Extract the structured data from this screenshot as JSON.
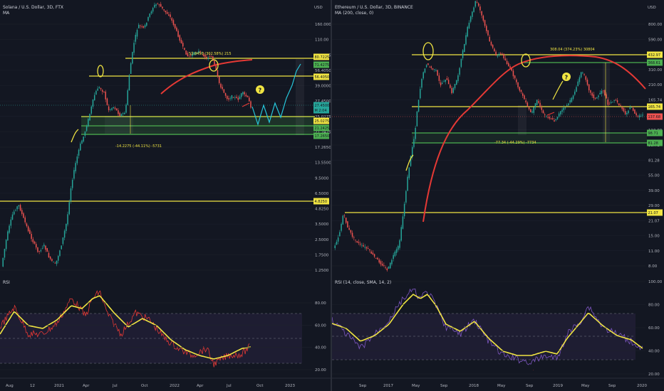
{
  "left": {
    "title": "Solana / U.S. Dollar, 3D, FTX",
    "indicator": "MA",
    "rsi_label": "RSI",
    "currency": "USD",
    "price_ticks": [
      "160.0000",
      "110.00",
      "80.7225",
      "56.4050",
      "39.0000",
      "27.4500",
      "25.0275",
      "21.2425",
      "17.2650",
      "13.5500",
      "9.5000",
      "6.5000",
      "4.8250",
      "3.5000",
      "2.5000",
      "1.7500",
      "1.2500"
    ],
    "rsi_ticks": [
      "80.00",
      "60.00",
      "40.00",
      "20.00"
    ],
    "time_ticks": [
      "Aug",
      "12",
      "2021",
      "Apr",
      "Jul",
      "Oct",
      "2022",
      "Apr",
      "Jul",
      "Oct",
      "2023"
    ],
    "measure_up": "53.8450 (302.58%) 215",
    "measure_down": "-14.2275 (-44.11%) -5731",
    "price_badges": [
      {
        "label": "80.7225",
        "color": "#f0e442"
      },
      {
        "label": "71.4275",
        "color": "#4caf50"
      },
      {
        "label": "56.4050",
        "color": "#f0e442"
      },
      {
        "label": "27.4500",
        "color": "#26a69a"
      },
      {
        "label": "M 2:04",
        "color": "#26a69a"
      },
      {
        "label": "25.0275",
        "color": "#f0e442"
      },
      {
        "label": "21.2425",
        "color": "#4caf50"
      },
      {
        "label": "17.2650",
        "color": "#4caf50"
      },
      {
        "label": "4.8250",
        "color": "#f0e442"
      }
    ]
  },
  "right": {
    "title": "Ethereum / U.S. Dollar, 3D, BINANCE",
    "indicator": "MA (200, close, 0)",
    "rsi_label": "RSI (14, close, SMA, 14, 2)",
    "currency": "USD",
    "price_ticks": [
      "800.00",
      "590.00",
      "432.97",
      "310.00",
      "210.00",
      "165.74",
      "137.68",
      "110.00",
      "98.71",
      "81.28",
      "55.00",
      "39.00",
      "29.00",
      "21.07",
      "15.00",
      "11.00",
      "8.00"
    ],
    "rsi_ticks": [
      "100.00",
      "80.00",
      "60.00",
      "40.00",
      "20.00"
    ],
    "time_ticks": [
      "Sep",
      "2017",
      "May",
      "Sep",
      "2018",
      "May",
      "Sep",
      "2019",
      "May",
      "Sep",
      "2020"
    ],
    "measure_up": "308.04 (374.23%) 30804",
    "measure_down": "-77.34 (-44.29%) -7734",
    "price_badges": [
      {
        "label": "432.97",
        "color": "#f0e442"
      },
      {
        "label": "368.61",
        "color": "#4caf50"
      },
      {
        "label": "165.74",
        "color": "#f0e442"
      },
      {
        "label": "137.68",
        "color": "#ef5350"
      },
      {
        "label": "98.71",
        "color": "#4caf50"
      },
      {
        "label": "81.28",
        "color": "#4caf50"
      },
      {
        "label": "21.07",
        "color": "#f0e442"
      }
    ]
  },
  "colors": {
    "up": "#26a69a",
    "down": "#ef5350",
    "level": "#f0e442",
    "support": "#4caf50",
    "ma": "#e53935",
    "rsi_left": "#e53935",
    "rsi_right": "#7e57c2",
    "rsi_sma": "#f0e442"
  },
  "annotations": {
    "question_mark": "?"
  }
}
